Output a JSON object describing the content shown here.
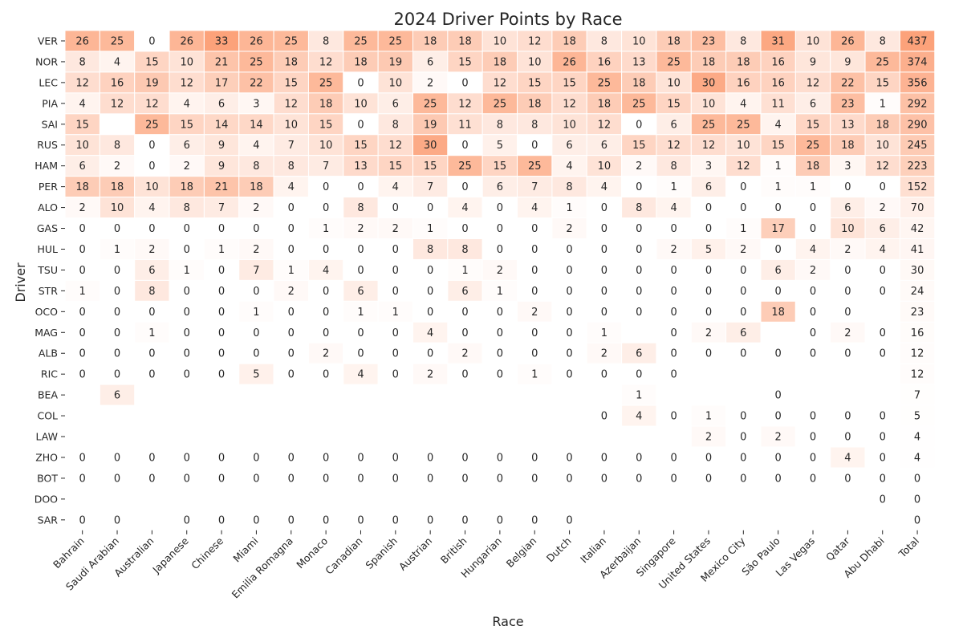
{
  "chart_data": {
    "type": "heatmap",
    "title": "2024 Driver Points by Race",
    "xlabel": "Race",
    "ylabel": "Driver",
    "columns": [
      "Bahrain",
      "Saudi Arabian",
      "Australian",
      "Japanese",
      "Chinese",
      "Miami",
      "Emilia Romagna",
      "Monaco",
      "Canadian",
      "Spanish",
      "Austrian",
      "British",
      "Hungarian",
      "Belgian",
      "Dutch",
      "Italian",
      "Azerbaijan",
      "Singapore",
      "United States",
      "Mexico City",
      "São Paulo",
      "Las Vegas",
      "Qatar",
      "Abu Dhabi",
      "Total"
    ],
    "rows": [
      "VER",
      "NOR",
      "LEC",
      "PIA",
      "SAI",
      "RUS",
      "HAM",
      "PER",
      "ALO",
      "GAS",
      "HUL",
      "TSU",
      "STR",
      "OCO",
      "MAG",
      "ALB",
      "RIC",
      "BEA",
      "COL",
      "LAW",
      "ZHO",
      "BOT",
      "DOO",
      "SAR"
    ],
    "values": [
      [
        26,
        25,
        0,
        26,
        33,
        26,
        25,
        8,
        25,
        25,
        18,
        18,
        10,
        12,
        18,
        8,
        10,
        18,
        23,
        8,
        31,
        10,
        26,
        8,
        437
      ],
      [
        8,
        4,
        15,
        10,
        21,
        25,
        18,
        12,
        18,
        19,
        6,
        15,
        18,
        10,
        26,
        16,
        13,
        25,
        18,
        18,
        16,
        9,
        9,
        25,
        374
      ],
      [
        12,
        16,
        19,
        12,
        17,
        22,
        15,
        25,
        0,
        10,
        2,
        0,
        12,
        15,
        15,
        25,
        18,
        10,
        30,
        16,
        16,
        12,
        22,
        15,
        356
      ],
      [
        4,
        12,
        12,
        4,
        6,
        3,
        12,
        18,
        10,
        6,
        25,
        12,
        25,
        18,
        12,
        18,
        25,
        15,
        10,
        4,
        11,
        6,
        23,
        1,
        292
      ],
      [
        15,
        null,
        25,
        15,
        14,
        14,
        10,
        15,
        0,
        8,
        19,
        11,
        8,
        8,
        10,
        12,
        0,
        6,
        25,
        25,
        4,
        15,
        13,
        18,
        290
      ],
      [
        10,
        8,
        0,
        6,
        9,
        4,
        7,
        10,
        15,
        12,
        30,
        0,
        5,
        0,
        6,
        6,
        15,
        12,
        12,
        10,
        15,
        25,
        18,
        10,
        245
      ],
      [
        6,
        2,
        0,
        2,
        9,
        8,
        8,
        7,
        13,
        15,
        15,
        25,
        15,
        25,
        4,
        10,
        2,
        8,
        3,
        12,
        1,
        18,
        3,
        12,
        223
      ],
      [
        18,
        18,
        10,
        18,
        21,
        18,
        4,
        0,
        0,
        4,
        7,
        0,
        6,
        7,
        8,
        4,
        0,
        1,
        6,
        0,
        1,
        1,
        0,
        0,
        152
      ],
      [
        2,
        10,
        4,
        8,
        7,
        2,
        0,
        0,
        8,
        0,
        0,
        4,
        0,
        4,
        1,
        0,
        8,
        4,
        0,
        0,
        0,
        0,
        6,
        2,
        70
      ],
      [
        0,
        0,
        0,
        0,
        0,
        0,
        0,
        1,
        2,
        2,
        1,
        0,
        0,
        0,
        2,
        0,
        0,
        0,
        0,
        1,
        17,
        0,
        10,
        6,
        42
      ],
      [
        0,
        1,
        2,
        0,
        1,
        2,
        0,
        0,
        0,
        0,
        8,
        8,
        0,
        0,
        0,
        0,
        0,
        2,
        5,
        2,
        0,
        4,
        2,
        4,
        41
      ],
      [
        0,
        0,
        6,
        1,
        0,
        7,
        1,
        4,
        0,
        0,
        0,
        1,
        2,
        0,
        0,
        0,
        0,
        0,
        0,
        0,
        6,
        2,
        0,
        0,
        30
      ],
      [
        1,
        0,
        8,
        0,
        0,
        0,
        2,
        0,
        6,
        0,
        0,
        6,
        1,
        0,
        0,
        0,
        0,
        0,
        0,
        0,
        0,
        0,
        0,
        0,
        24
      ],
      [
        0,
        0,
        0,
        0,
        0,
        1,
        0,
        0,
        1,
        1,
        0,
        0,
        0,
        2,
        0,
        0,
        0,
        0,
        0,
        0,
        18,
        0,
        0,
        null,
        23
      ],
      [
        0,
        0,
        1,
        0,
        0,
        0,
        0,
        0,
        0,
        0,
        4,
        0,
        0,
        0,
        0,
        1,
        null,
        0,
        2,
        6,
        null,
        0,
        2,
        0,
        16
      ],
      [
        0,
        0,
        0,
        0,
        0,
        0,
        0,
        2,
        0,
        0,
        0,
        2,
        0,
        0,
        0,
        2,
        6,
        0,
        0,
        0,
        0,
        0,
        0,
        0,
        12
      ],
      [
        0,
        0,
        0,
        0,
        0,
        5,
        0,
        0,
        4,
        0,
        2,
        0,
        0,
        1,
        0,
        0,
        0,
        0,
        null,
        null,
        null,
        null,
        null,
        null,
        12
      ],
      [
        null,
        6,
        null,
        null,
        null,
        null,
        null,
        null,
        null,
        null,
        null,
        null,
        null,
        null,
        null,
        null,
        1,
        null,
        null,
        null,
        0,
        null,
        null,
        null,
        7
      ],
      [
        null,
        null,
        null,
        null,
        null,
        null,
        null,
        null,
        null,
        null,
        null,
        null,
        null,
        null,
        null,
        0,
        4,
        0,
        1,
        0,
        0,
        0,
        0,
        0,
        5
      ],
      [
        null,
        null,
        null,
        null,
        null,
        null,
        null,
        null,
        null,
        null,
        null,
        null,
        null,
        null,
        null,
        null,
        null,
        null,
        2,
        0,
        2,
        0,
        0,
        0,
        4
      ],
      [
        0,
        0,
        0,
        0,
        0,
        0,
        0,
        0,
        0,
        0,
        0,
        0,
        0,
        0,
        0,
        0,
        0,
        0,
        0,
        0,
        0,
        0,
        4,
        0,
        4
      ],
      [
        0,
        0,
        0,
        0,
        0,
        0,
        0,
        0,
        0,
        0,
        0,
        0,
        0,
        0,
        0,
        0,
        0,
        0,
        0,
        0,
        0,
        0,
        0,
        0,
        0
      ],
      [
        null,
        null,
        null,
        null,
        null,
        null,
        null,
        null,
        null,
        null,
        null,
        null,
        null,
        null,
        null,
        null,
        null,
        null,
        null,
        null,
        null,
        null,
        null,
        0,
        0
      ],
      [
        0,
        0,
        null,
        0,
        0,
        0,
        0,
        0,
        0,
        0,
        0,
        0,
        0,
        0,
        0,
        null,
        null,
        null,
        null,
        null,
        null,
        null,
        null,
        null,
        0
      ]
    ],
    "color_scale": {
      "low": "#ffffff",
      "high": "#fca27a",
      "max_race": 33,
      "max_total": 437
    },
    "grid": false,
    "legend": "none"
  }
}
